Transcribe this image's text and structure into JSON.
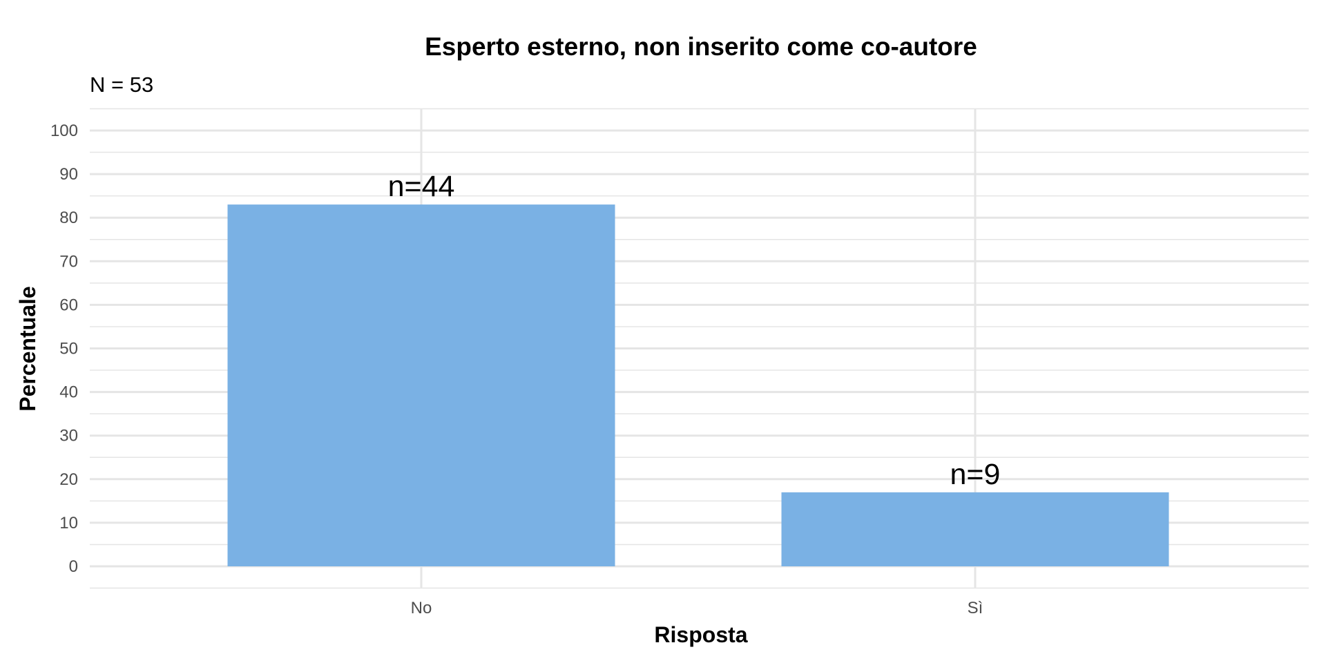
{
  "chart_data": {
    "type": "bar",
    "title": "Esperto esterno, non inserito come co-autore",
    "subtitle": "N = 53",
    "xlabel": "Risposta",
    "ylabel": "Percentuale",
    "categories": [
      "No",
      "Sì"
    ],
    "values": [
      83.02,
      16.98
    ],
    "data_labels": [
      "n=44",
      "n=9"
    ],
    "ylim": [
      0,
      100
    ],
    "yticks": [
      "0",
      "10",
      "20",
      "30",
      "40",
      "50",
      "60",
      "70",
      "80",
      "90",
      "100"
    ],
    "grid": true,
    "bar_color": "#7AB1E4",
    "grid_color": "#E5E5E5"
  }
}
